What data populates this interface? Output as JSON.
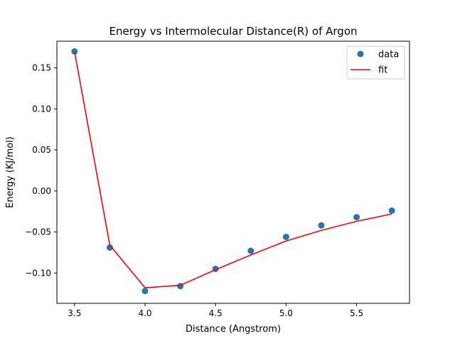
{
  "chart_data": {
    "type": "scatter",
    "title": "Energy vs Intermolecular Distance(R) of Argon",
    "xlabel": "Distance (Angstrom)",
    "ylabel": "Energy (KJ/mol)",
    "xlim": [
      3.375,
      5.875
    ],
    "ylim": [
      -0.137,
      0.1825
    ],
    "x_ticks": [
      3.5,
      4.0,
      4.5,
      5.0,
      5.5
    ],
    "x_tick_labels": [
      "3.5",
      "4.0",
      "4.5",
      "5.0",
      "5.5"
    ],
    "y_ticks": [
      0.15,
      0.1,
      0.05,
      0.0,
      -0.05,
      -0.1
    ],
    "y_tick_labels": [
      "0.15",
      "0.10",
      "0.05",
      "0.00",
      "−0.05",
      "−0.10"
    ],
    "grid": false,
    "legend_position": "top-right",
    "series": [
      {
        "name": "data",
        "kind": "scatter",
        "color": "#1f77b4",
        "x": [
          3.5,
          3.75,
          4.0,
          4.25,
          4.5,
          4.75,
          5.0,
          5.25,
          5.5,
          5.75
        ],
        "y": [
          0.17,
          -0.069,
          -0.122,
          -0.116,
          -0.095,
          -0.073,
          -0.056,
          -0.042,
          -0.032,
          -0.024
        ]
      },
      {
        "name": "fit",
        "kind": "line",
        "color": "#ff0000",
        "x": [
          3.5,
          3.75,
          4.0,
          4.25,
          4.5,
          4.75,
          5.0,
          5.25,
          5.5,
          5.75
        ],
        "y": [
          0.17,
          -0.066,
          -0.118,
          -0.115,
          -0.096,
          -0.078,
          -0.061,
          -0.048,
          -0.037,
          -0.028
        ]
      }
    ]
  }
}
